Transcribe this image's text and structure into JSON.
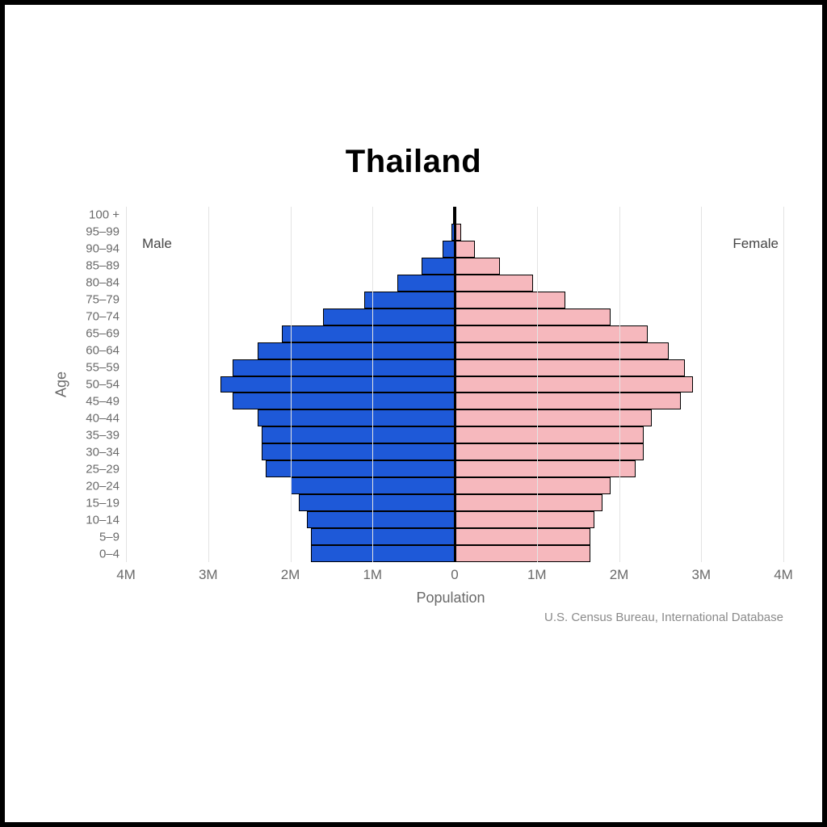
{
  "title": "Thailand",
  "chart": {
    "type": "population-pyramid",
    "ylabel": "Age",
    "xlabel": "Population",
    "x_max": 4000000,
    "x_ticks": [
      -4000000,
      -3000000,
      -2000000,
      -1000000,
      0,
      1000000,
      2000000,
      3000000,
      4000000
    ],
    "x_tick_labels": [
      "4M",
      "3M",
      "2M",
      "1M",
      "0",
      "1M",
      "2M",
      "3M",
      "4M"
    ],
    "grid_color": "#e3e3e3",
    "center_line_color": "#000000",
    "background_color": "#ffffff",
    "tick_font_color": "#6a6a6a",
    "tick_font_size_pt": 13,
    "label_font_size_pt": 14,
    "title_font_size_pt": 30,
    "series": {
      "male": {
        "label": "Male",
        "fill": "#1e59d8",
        "stroke": "#000000"
      },
      "female": {
        "label": "Female",
        "fill": "#f6b8bd",
        "stroke": "#000000"
      }
    },
    "age_groups": [
      "0–4",
      "5–9",
      "10–14",
      "15–19",
      "20–24",
      "25–29",
      "30–34",
      "35–39",
      "40–44",
      "45–49",
      "50–54",
      "55–59",
      "60–64",
      "65–69",
      "70–74",
      "75–79",
      "80–84",
      "85–89",
      "90–94",
      "95–99",
      "100 +"
    ],
    "male_values": [
      1750000,
      1750000,
      1800000,
      1900000,
      2000000,
      2300000,
      2350000,
      2350000,
      2400000,
      2700000,
      2850000,
      2700000,
      2400000,
      2100000,
      1600000,
      1100000,
      700000,
      400000,
      150000,
      40000,
      8000
    ],
    "female_values": [
      1650000,
      1650000,
      1700000,
      1800000,
      1900000,
      2200000,
      2300000,
      2300000,
      2400000,
      2750000,
      2900000,
      2800000,
      2600000,
      2350000,
      1900000,
      1350000,
      950000,
      550000,
      250000,
      80000,
      20000
    ]
  },
  "credit": "U.S. Census Bureau, International Database"
}
